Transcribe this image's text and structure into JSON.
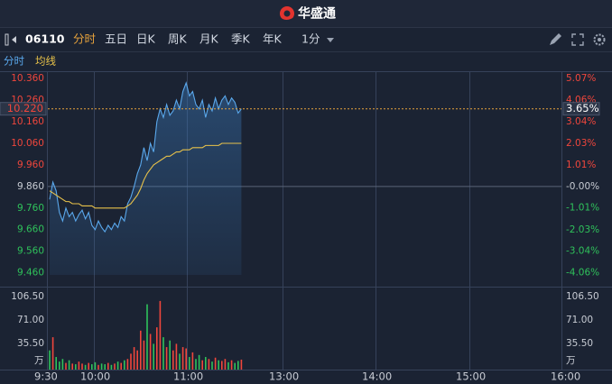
{
  "header": {
    "title": "华盛通"
  },
  "toolbar": {
    "code": "06110",
    "tabs": [
      "分时",
      "五日",
      "日K",
      "周K",
      "月K",
      "季K",
      "年K"
    ],
    "active_tab": 0,
    "interval": "1分"
  },
  "chart_data": {
    "type": "line",
    "series": [
      {
        "name": "分时",
        "color": "#5aa8ec",
        "values": [
          9.8,
          9.88,
          9.84,
          9.74,
          9.7,
          9.76,
          9.72,
          9.74,
          9.7,
          9.73,
          9.75,
          9.71,
          9.74,
          9.68,
          9.66,
          9.7,
          9.67,
          9.65,
          9.68,
          9.66,
          9.69,
          9.67,
          9.72,
          9.7,
          9.78,
          9.81,
          9.86,
          9.92,
          9.96,
          10.04,
          9.98,
          10.06,
          10.02,
          10.16,
          10.22,
          10.18,
          10.24,
          10.19,
          10.21,
          10.26,
          10.22,
          10.3,
          10.34,
          10.28,
          10.3,
          10.24,
          10.22,
          10.26,
          10.18,
          10.24,
          10.21,
          10.27,
          10.22,
          10.26,
          10.28,
          10.24,
          10.27,
          10.25,
          10.2,
          10.22
        ]
      },
      {
        "name": "均线",
        "color": "#e8c24a",
        "values": [
          9.84,
          9.83,
          9.82,
          9.81,
          9.8,
          9.79,
          9.79,
          9.78,
          9.78,
          9.78,
          9.77,
          9.77,
          9.77,
          9.77,
          9.76,
          9.76,
          9.76,
          9.76,
          9.76,
          9.76,
          9.76,
          9.76,
          9.76,
          9.76,
          9.77,
          9.78,
          9.8,
          9.82,
          9.85,
          9.89,
          9.92,
          9.94,
          9.96,
          9.97,
          9.98,
          9.99,
          10.0,
          10.0,
          10.01,
          10.02,
          10.02,
          10.03,
          10.03,
          10.03,
          10.04,
          10.04,
          10.04,
          10.04,
          10.05,
          10.05,
          10.05,
          10.05,
          10.05,
          10.06,
          10.06,
          10.06,
          10.06,
          10.06,
          10.06,
          10.06
        ]
      }
    ],
    "area_fill": true,
    "ylim": [
      9.45,
      10.39
    ],
    "yticks": [
      {
        "value": 10.36,
        "label": "10.360"
      },
      {
        "value": 10.26,
        "label": "10.260"
      },
      {
        "value": 10.16,
        "label": "10.160"
      },
      {
        "value": 10.06,
        "label": "10.060"
      },
      {
        "value": 9.96,
        "label": "9.960"
      },
      {
        "value": 9.86,
        "label": "9.860"
      },
      {
        "value": 9.76,
        "label": "9.760"
      },
      {
        "value": 9.66,
        "label": "9.660"
      },
      {
        "value": 9.56,
        "label": "9.560"
      },
      {
        "value": 9.46,
        "label": "9.460"
      }
    ],
    "y2lim": [
      -4.158,
      5.375
    ],
    "y2ticks": [
      {
        "value": 5.07,
        "label": "5.07%"
      },
      {
        "value": 4.06,
        "label": "4.06%"
      },
      {
        "value": 3.04,
        "label": "3.04%"
      },
      {
        "value": 2.03,
        "label": "2.03%"
      },
      {
        "value": 1.01,
        "label": "1.01%"
      },
      {
        "value": 0,
        "label": "-0.00%"
      },
      {
        "value": -1.01,
        "label": "-1.01%"
      },
      {
        "value": -2.03,
        "label": "-2.03%"
      },
      {
        "value": -3.04,
        "label": "-3.04%"
      },
      {
        "value": -4.06,
        "label": "-4.06%"
      }
    ],
    "prev_close": 9.86,
    "up_color": "#f0463c",
    "down_color": "#2fc25b",
    "flat_color": "#c8ccd4",
    "last_price": {
      "value": 10.22,
      "label": "10.220"
    },
    "last_change": {
      "value": 3.65,
      "label": "3.65%"
    },
    "volume": {
      "unit": "万",
      "ylim": [
        0,
        119
      ],
      "yticks": [
        {
          "value": 106.5,
          "label": "106.50"
        },
        {
          "value": 71,
          "label": "71.00"
        },
        {
          "value": 35.5,
          "label": "35.50"
        }
      ],
      "values": [
        25,
        45,
        15,
        8,
        12,
        6,
        10,
        5,
        4,
        8,
        5,
        3,
        6,
        4,
        7,
        3,
        5,
        4,
        6,
        3,
        5,
        8,
        6,
        10,
        12,
        20,
        30,
        25,
        55,
        40,
        95,
        50,
        35,
        60,
        100,
        45,
        30,
        40,
        25,
        35,
        20,
        30,
        28,
        15,
        22,
        12,
        18,
        10,
        15,
        12,
        8,
        14,
        10,
        9,
        12,
        7,
        10,
        6,
        9,
        11
      ]
    },
    "x_labels": [
      "9:30",
      "10:00",
      "11:00",
      "13:00",
      "14:00",
      "15:00",
      "16:00"
    ]
  }
}
